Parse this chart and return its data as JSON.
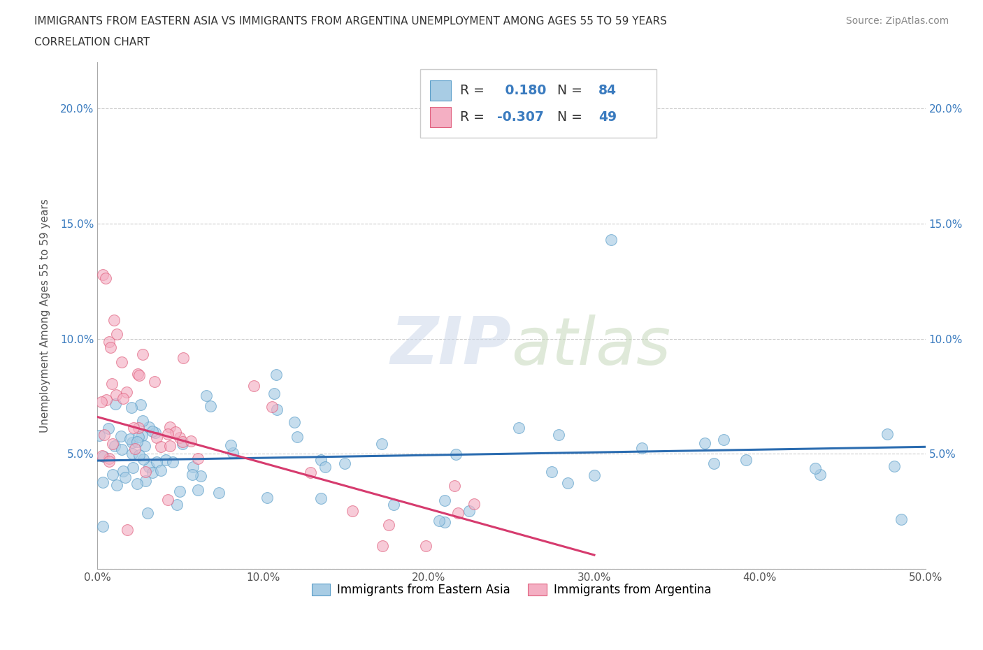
{
  "title_line1": "IMMIGRANTS FROM EASTERN ASIA VS IMMIGRANTS FROM ARGENTINA UNEMPLOYMENT AMONG AGES 55 TO 59 YEARS",
  "title_line2": "CORRELATION CHART",
  "source": "Source: ZipAtlas.com",
  "ylabel": "Unemployment Among Ages 55 to 59 years",
  "xlim": [
    0.0,
    0.5
  ],
  "ylim": [
    0.0,
    0.22
  ],
  "xtick_vals": [
    0.0,
    0.1,
    0.2,
    0.3,
    0.4,
    0.5
  ],
  "xtick_labels": [
    "0.0%",
    "10.0%",
    "20.0%",
    "30.0%",
    "40.0%",
    "50.0%"
  ],
  "ytick_vals": [
    0.0,
    0.05,
    0.1,
    0.15,
    0.2
  ],
  "ytick_labels": [
    "",
    "5.0%",
    "10.0%",
    "15.0%",
    "20.0%"
  ],
  "blue_fill": "#a8cce4",
  "blue_edge": "#5b9ec9",
  "pink_fill": "#f4afc3",
  "pink_edge": "#e0607e",
  "blue_line": "#2b6cb0",
  "pink_line": "#d63b6e",
  "r_blue": 0.18,
  "n_blue": 84,
  "r_pink": -0.307,
  "n_pink": 49,
  "legend_label_blue": "Immigrants from Eastern Asia",
  "legend_label_pink": "Immigrants from Argentina",
  "text_dark": "#333333",
  "text_blue": "#3a7bbf",
  "text_gray": "#888888",
  "b_slope": 0.012,
  "b_intercept": 0.047,
  "p_slope": -0.2,
  "p_intercept": 0.066
}
